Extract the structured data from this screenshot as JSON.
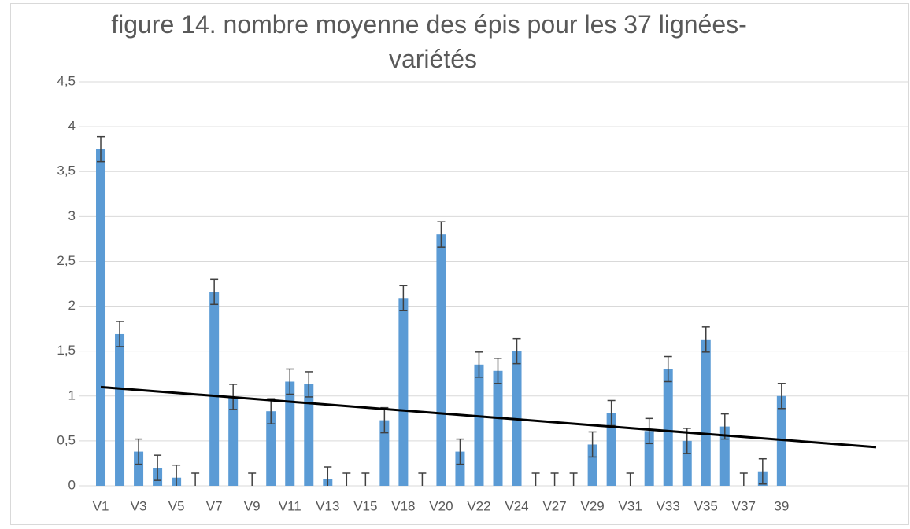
{
  "chart_data": {
    "type": "bar",
    "title": [
      "figure 14. nombre moyenne des épis pour les 37 lignées-",
      "variétés"
    ],
    "categories": [
      "V1",
      null,
      "V3",
      null,
      "V5",
      null,
      "V7",
      null,
      "V9",
      null,
      "V11",
      null,
      "V13",
      null,
      "V15",
      null,
      "V18",
      null,
      "V20",
      null,
      "V22",
      null,
      "V24",
      null,
      "V27",
      null,
      "V29",
      null,
      "V31",
      null,
      "V33",
      null,
      "V35",
      null,
      "V37",
      null,
      "39",
      null,
      null,
      null,
      null,
      null,
      null
    ],
    "values": [
      3.75,
      1.69,
      0.38,
      0.2,
      0.09,
      0,
      2.16,
      0.99,
      0,
      0.83,
      1.16,
      1.13,
      0.07,
      0,
      0,
      0.73,
      2.09,
      0,
      2.8,
      0.38,
      1.35,
      1.28,
      1.5,
      0,
      0,
      0,
      0.46,
      0.81,
      0,
      0.61,
      1.3,
      0.5,
      1.63,
      0.66,
      0,
      0.16,
      1.0,
      null,
      null,
      null,
      null,
      null,
      null
    ],
    "errors": [
      0.14,
      0.14,
      0.14,
      0.14,
      0.14,
      0.14,
      0.14,
      0.14,
      0.14,
      0.14,
      0.14,
      0.14,
      0.14,
      0.14,
      0.14,
      0.14,
      0.14,
      0.14,
      0.14,
      0.14,
      0.14,
      0.14,
      0.14,
      0.14,
      0.14,
      0.14,
      0.14,
      0.14,
      0.14,
      0.14,
      0.14,
      0.14,
      0.14,
      0.14,
      0.14,
      0.14,
      0.14,
      null,
      null,
      null,
      null,
      null,
      null
    ],
    "color": "#5b9bd5",
    "error_color": "#404040",
    "trendline": {
      "x": [
        0,
        41
      ],
      "values": [
        1.1,
        0.43
      ],
      "color": "#000000"
    },
    "ylim": [
      0,
      4.5
    ],
    "yticks": [
      0,
      {
        "value": 0.5,
        "label": "0,5"
      },
      1,
      {
        "value": 1.5,
        "label": "1,5"
      },
      2,
      {
        "value": 2.5,
        "label": "2,5"
      },
      3,
      {
        "value": 3.5,
        "label": "3,5"
      },
      4,
      {
        "value": 4.5,
        "label": "4,5"
      }
    ],
    "grid": true
  }
}
